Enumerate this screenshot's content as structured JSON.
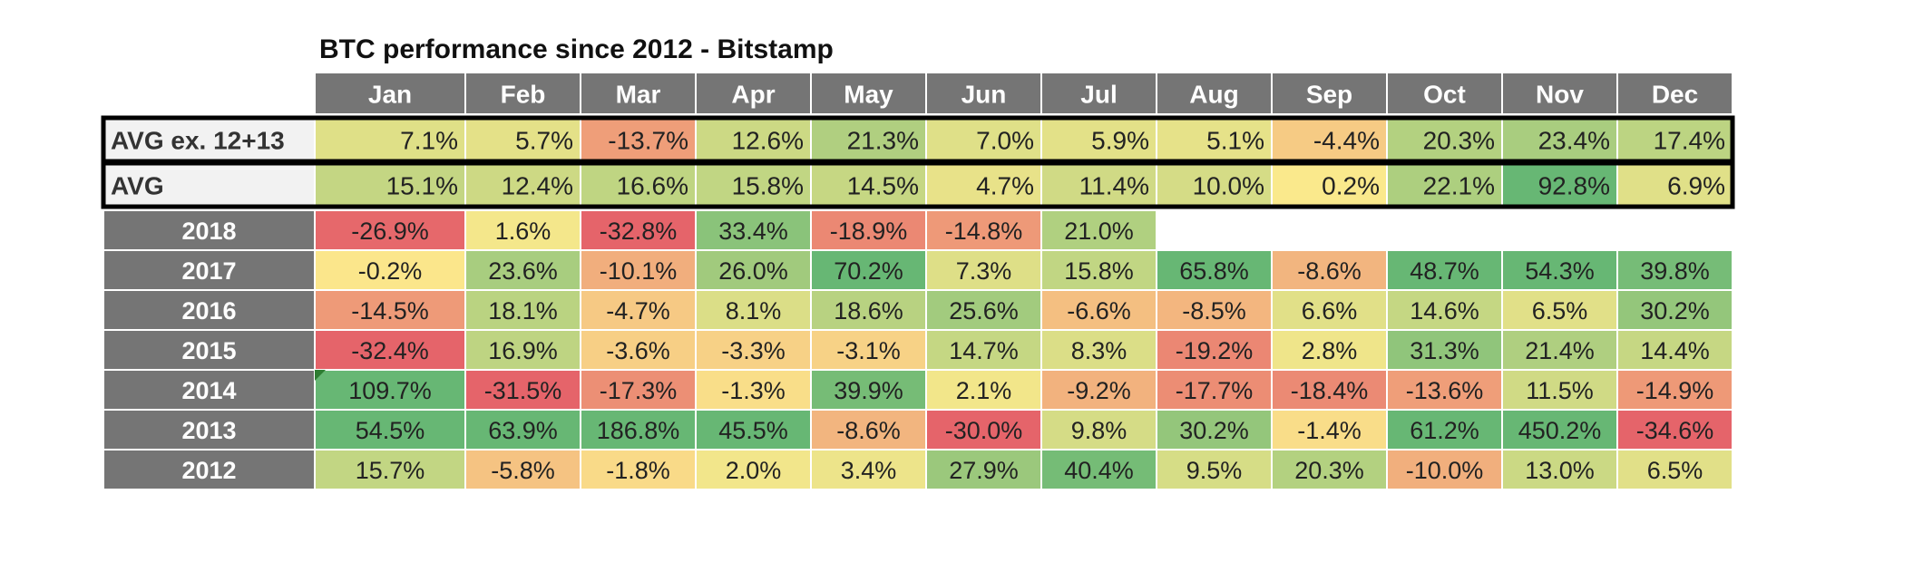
{
  "chart_data": {
    "type": "heatmap",
    "title": "BTC performance since 2012 - Bitstamp",
    "columns": [
      "Jan",
      "Feb",
      "Mar",
      "Apr",
      "May",
      "Jun",
      "Jul",
      "Aug",
      "Sep",
      "Oct",
      "Nov",
      "Dec"
    ],
    "summary_rows": [
      {
        "label": "AVG ex. 12+13",
        "values": [
          "7.1%",
          "5.7%",
          "-13.7%",
          "12.6%",
          "21.3%",
          "7.0%",
          "5.9%",
          "5.1%",
          "-4.4%",
          "20.3%",
          "23.4%",
          "17.4%"
        ]
      },
      {
        "label": "AVG",
        "values": [
          "15.1%",
          "12.4%",
          "16.6%",
          "15.8%",
          "14.5%",
          "4.7%",
          "11.4%",
          "10.0%",
          "0.2%",
          "22.1%",
          "92.8%",
          "6.9%"
        ]
      }
    ],
    "rows": [
      {
        "label": "2018",
        "values": [
          "-26.9%",
          "1.6%",
          "-32.8%",
          "33.4%",
          "-18.9%",
          "-14.8%",
          "21.0%",
          null,
          null,
          null,
          null,
          null
        ]
      },
      {
        "label": "2017",
        "values": [
          "-0.2%",
          "23.6%",
          "-10.1%",
          "26.0%",
          "70.2%",
          "7.3%",
          "15.8%",
          "65.8%",
          "-8.6%",
          "48.7%",
          "54.3%",
          "39.8%"
        ]
      },
      {
        "label": "2016",
        "values": [
          "-14.5%",
          "18.1%",
          "-4.7%",
          "8.1%",
          "18.6%",
          "25.6%",
          "-6.6%",
          "-8.5%",
          "6.6%",
          "14.6%",
          "6.5%",
          "30.2%"
        ]
      },
      {
        "label": "2015",
        "values": [
          "-32.4%",
          "16.9%",
          "-3.6%",
          "-3.3%",
          "-3.1%",
          "14.7%",
          "8.3%",
          "-19.2%",
          "2.8%",
          "31.3%",
          "21.4%",
          "14.4%"
        ]
      },
      {
        "label": "2014",
        "values": [
          "109.7%",
          "-31.5%",
          "-17.3%",
          "-1.3%",
          "39.9%",
          "2.1%",
          "-9.2%",
          "-17.7%",
          "-18.4%",
          "-13.6%",
          "11.5%",
          "-14.9%"
        ]
      },
      {
        "label": "2013",
        "values": [
          "54.5%",
          "63.9%",
          "186.8%",
          "45.5%",
          "-8.6%",
          "-30.0%",
          "9.8%",
          "30.2%",
          "-1.4%",
          "61.2%",
          "450.2%",
          "-34.6%"
        ]
      },
      {
        "label": "2012",
        "values": [
          "15.7%",
          "-5.8%",
          "-1.8%",
          "2.0%",
          "3.4%",
          "27.9%",
          "40.4%",
          "9.5%",
          "20.3%",
          "-10.0%",
          "13.0%",
          "6.5%"
        ]
      }
    ],
    "colors": {
      "header_fill": "#757575",
      "header_text": "#ffffff",
      "summary_label_fill": "#f2f2f2",
      "scale_low": "#e5646a",
      "scale_mid": "#fbe98c",
      "scale_high": "#67b774",
      "outline": "#000000",
      "cell_border": "#ffffff"
    }
  }
}
